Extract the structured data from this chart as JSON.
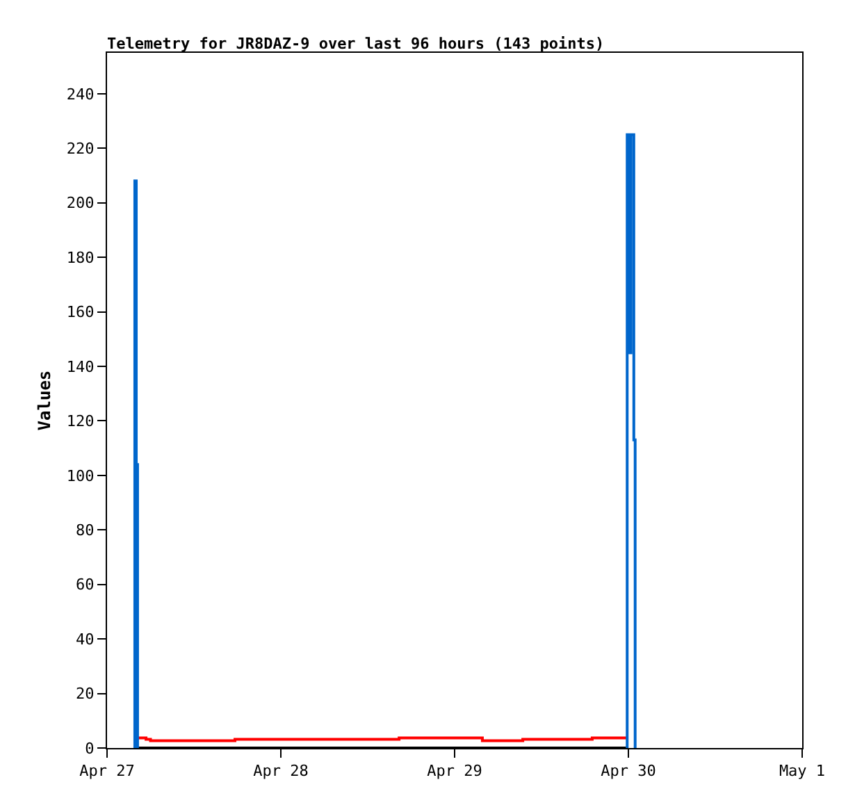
{
  "chart_data": {
    "type": "step",
    "title": "Telemetry for JR8DAZ-9 over last 96 hours (143 points)",
    "ylabel": "Values",
    "xlim": [
      "--04-27",
      "--05-01"
    ],
    "xticks": [
      {
        "value": "--04-27",
        "label": "Apr 27"
      },
      {
        "value": "--04-28",
        "label": "Apr 28"
      },
      {
        "value": "--04-29",
        "label": "Apr 29"
      },
      {
        "value": "--04-30",
        "label": "Apr 30"
      },
      {
        "value": "--05-01",
        "label": "May 1"
      }
    ],
    "ylim": [
      0,
      255
    ],
    "yticks": [
      0,
      20,
      40,
      60,
      80,
      100,
      120,
      140,
      160,
      180,
      200,
      220,
      240
    ],
    "grid": false,
    "marker": "none",
    "line_style": "solid",
    "series": [
      {
        "color": "#000000",
        "x": [
          "--04-27T03:50",
          "--04-30T00:00"
        ],
        "values": [
          0,
          0
        ]
      },
      {
        "color": "#ff0000",
        "x": [
          "--04-27T04:13",
          "--04-27T05:23",
          "--04-27T06:00",
          "--04-27T17:40",
          "--04-28T16:20",
          "--04-29T03:50",
          "--04-29T09:25",
          "--04-29T19:00",
          "--04-29T23:50"
        ],
        "values": [
          3.7,
          3.2,
          2.7,
          3.2,
          3.7,
          2.7,
          3.2,
          3.7,
          3.7
        ]
      },
      {
        "color": "#0066cc",
        "x": [
          "--04-27T03:49",
          "--04-27T03:50",
          "--04-27T04:02",
          "--04-27T04:13",
          "--04-28T12:00",
          "--04-29T23:49",
          "--04-29T23:50",
          "--04-30T00:10",
          "--04-30T00:21",
          "--04-30T00:45",
          "--04-30T00:56"
        ],
        "values": [
          0,
          208,
          104,
          0,
          null,
          0,
          225,
          145,
          225,
          113,
          0
        ]
      }
    ]
  }
}
